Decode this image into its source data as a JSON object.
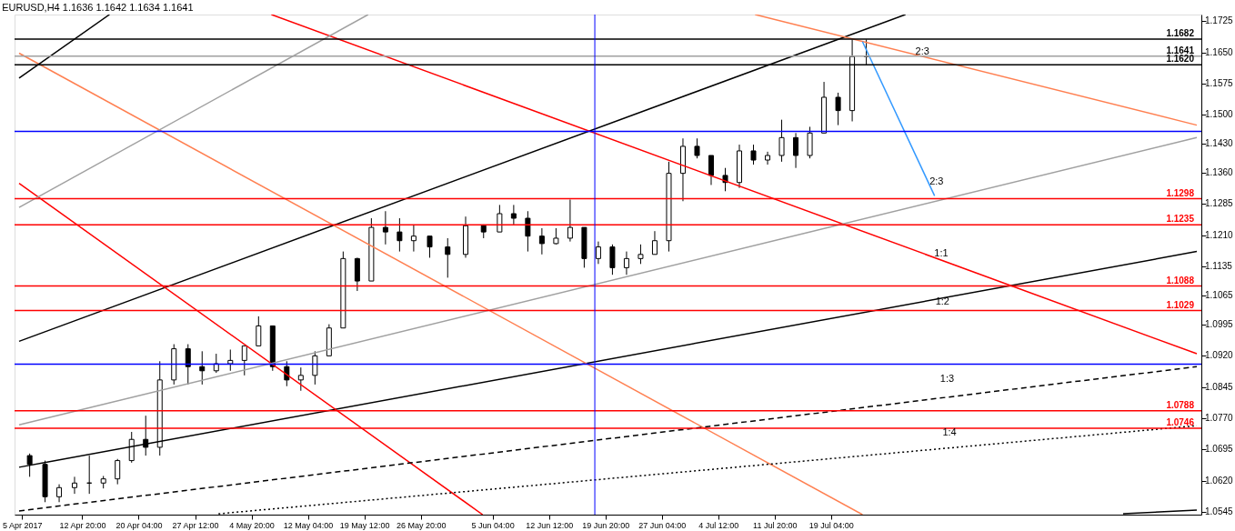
{
  "chart_data": {
    "type": "candlestick",
    "title": "EURUSD,H4 1.1636 1.1642 1.1634 1.1641",
    "x": [
      "2017-04-06T00:00",
      "2017-04-08T00:00",
      "2017-04-09T20:00",
      "2017-04-11T20:00",
      "2017-04-13T18:00",
      "2017-04-15T14:00",
      "2017-04-17T10:00",
      "2017-04-19T06:00",
      "2017-04-21T02:00",
      "2017-04-22T22:00",
      "2017-04-24T18:00",
      "2017-04-26T14:00",
      "2017-04-28T10:00",
      "2017-04-30T06:00",
      "2017-05-02T02:00",
      "2017-05-03T22:00",
      "2017-05-05T18:00",
      "2017-05-07T14:00",
      "2017-05-09T10:00",
      "2017-05-11T06:00",
      "2017-05-13T02:00",
      "2017-05-14T22:00",
      "2017-05-16T18:00",
      "2017-05-18T14:00",
      "2017-05-20T10:00",
      "2017-05-22T06:00",
      "2017-05-24T02:00",
      "2017-05-25T22:00",
      "2017-05-28T00:00",
      "2017-05-30T08:00",
      "2017-06-01T16:00",
      "2017-06-04T00:00",
      "2017-06-06T02:00",
      "2017-06-07T22:00",
      "2017-06-09T18:00",
      "2017-06-11T14:00",
      "2017-06-13T10:00",
      "2017-06-15T06:00",
      "2017-06-17T02:00",
      "2017-06-18T22:00",
      "2017-06-20T18:00",
      "2017-06-22T14:00",
      "2017-06-24T10:00",
      "2017-06-26T06:00",
      "2017-06-28T02:00",
      "2017-06-29T22:00",
      "2017-07-01T18:00",
      "2017-07-03T14:00",
      "2017-07-05T10:00",
      "2017-07-07T06:00",
      "2017-07-09T02:00",
      "2017-07-10T22:00",
      "2017-07-12T18:00",
      "2017-07-14T14:00",
      "2017-07-16T10:00",
      "2017-07-18T06:00",
      "2017-07-20T02:00",
      "2017-07-21T22:00",
      "2017-07-23T18:00"
    ],
    "ohlc": [
      [
        1.068,
        1.0685,
        1.0629,
        1.0659
      ],
      [
        1.0659,
        1.0668,
        1.0568,
        1.0581
      ],
      [
        1.0581,
        1.0611,
        1.0568,
        1.0603
      ],
      [
        1.0603,
        1.0629,
        1.0588,
        1.0614
      ],
      [
        1.0614,
        1.068,
        1.0588,
        1.0614
      ],
      [
        1.0614,
        1.0631,
        1.0601,
        1.0624
      ],
      [
        1.0624,
        1.0672,
        1.0611,
        1.0668
      ],
      [
        1.0668,
        1.0737,
        1.0663,
        1.0719
      ],
      [
        1.0719,
        1.0776,
        1.068,
        1.07
      ],
      [
        1.07,
        1.0907,
        1.068,
        1.0862
      ],
      [
        1.0862,
        1.0948,
        1.0851,
        1.0937
      ],
      [
        1.0937,
        1.0948,
        1.0851,
        1.0894
      ],
      [
        1.0894,
        1.0931,
        1.0851,
        1.0884
      ],
      [
        1.0884,
        1.0925,
        1.0879,
        1.0901
      ],
      [
        1.0901,
        1.0935,
        1.0884,
        1.0909
      ],
      [
        1.0909,
        1.0944,
        1.0873,
        1.0944
      ],
      [
        1.0944,
        1.1015,
        1.0944,
        1.0992
      ],
      [
        1.0992,
        1.0992,
        1.0884,
        1.0894
      ],
      [
        1.0894,
        1.0907,
        1.0847,
        1.0862
      ],
      [
        1.0862,
        1.0892,
        1.0836,
        1.0873
      ],
      [
        1.0873,
        1.0931,
        1.0851,
        1.092
      ],
      [
        1.092,
        1.0996,
        1.092,
        1.0987
      ],
      [
        1.0987,
        1.1171,
        1.0987,
        1.1154
      ],
      [
        1.1154,
        1.1156,
        1.1076,
        1.11
      ],
      [
        1.11,
        1.1251,
        1.11,
        1.1229
      ],
      [
        1.1229,
        1.1268,
        1.1188,
        1.1218
      ],
      [
        1.1218,
        1.1251,
        1.1171,
        1.1197
      ],
      [
        1.1197,
        1.1236,
        1.1171,
        1.1208
      ],
      [
        1.1208,
        1.1208,
        1.1156,
        1.1182
      ],
      [
        1.1182,
        1.1203,
        1.1108,
        1.1164
      ],
      [
        1.1164,
        1.1255,
        1.1156,
        1.1233
      ],
      [
        1.1233,
        1.1236,
        1.1203,
        1.1218
      ],
      [
        1.1218,
        1.1283,
        1.1218,
        1.1262
      ],
      [
        1.1262,
        1.1283,
        1.1236,
        1.1251
      ],
      [
        1.1251,
        1.1268,
        1.1171,
        1.1208
      ],
      [
        1.1208,
        1.1227,
        1.1164,
        1.119
      ],
      [
        1.119,
        1.1227,
        1.1188,
        1.1203
      ],
      [
        1.1203,
        1.1296,
        1.1195,
        1.1229
      ],
      [
        1.1229,
        1.1229,
        1.1132,
        1.1154
      ],
      [
        1.1154,
        1.1195,
        1.1141,
        1.1182
      ],
      [
        1.1182,
        1.1188,
        1.1115,
        1.1132
      ],
      [
        1.1132,
        1.1171,
        1.1115,
        1.1154
      ],
      [
        1.1154,
        1.1188,
        1.1141,
        1.1164
      ],
      [
        1.1164,
        1.122,
        1.1164,
        1.1197
      ],
      [
        1.1197,
        1.1387,
        1.1171,
        1.1359
      ],
      [
        1.1359,
        1.1443,
        1.1292,
        1.1424
      ],
      [
        1.1424,
        1.1443,
        1.1395,
        1.1402
      ],
      [
        1.1402,
        1.1402,
        1.1331,
        1.1354
      ],
      [
        1.1354,
        1.1372,
        1.1316,
        1.1337
      ],
      [
        1.1337,
        1.1428,
        1.1324,
        1.1413
      ],
      [
        1.1413,
        1.1428,
        1.138,
        1.1391
      ],
      [
        1.1391,
        1.1411,
        1.138,
        1.1402
      ],
      [
        1.1402,
        1.1488,
        1.1387,
        1.1445
      ],
      [
        1.1445,
        1.1456,
        1.1372,
        1.1402
      ],
      [
        1.1402,
        1.1471,
        1.1395,
        1.1456
      ],
      [
        1.1456,
        1.1579,
        1.1456,
        1.1542
      ],
      [
        1.1542,
        1.1553,
        1.1475,
        1.151
      ],
      [
        1.151,
        1.1681,
        1.1484,
        1.164
      ],
      [
        1.164,
        1.1681,
        1.162,
        1.1641
      ]
    ],
    "series": [
      {
        "type": "line",
        "color": "#000000",
        "x": [
          "2017-04-04T15:00",
          "2017-07-28T20:00"
        ],
        "values": [
          1.0955,
          1.1741
        ]
      },
      {
        "type": "line",
        "color": "#000000",
        "x": [
          "2017-04-04T15:00",
          "2017-09-04T17:00"
        ],
        "values": [
          1.0652,
          1.1171
        ]
      },
      {
        "type": "line",
        "color": "#ff0000",
        "x": [
          "2017-05-07T10:00",
          "2017-09-04T17:00"
        ],
        "values": [
          1.1741,
          1.0925
        ]
      },
      {
        "type": "line",
        "color": "#ff0000",
        "x": [
          "2017-04-04T15:00",
          "2017-06-03T21:00"
        ],
        "values": [
          1.1335,
          1.0538
        ]
      },
      {
        "type": "line",
        "color": "#ff7f50",
        "x": [
          "2017-04-04T15:00",
          "2017-07-23T06:00"
        ],
        "values": [
          1.1648,
          1.0538
        ]
      },
      {
        "type": "line",
        "color": "#ff7f50",
        "x": [
          "2017-07-09T07:00",
          "2017-09-04T17:00"
        ],
        "values": [
          1.1741,
          1.1475
        ]
      },
      {
        "type": "line",
        "color": "#a0a0a0",
        "x": [
          "2017-04-04T15:00",
          "2017-05-20T00:00"
        ],
        "values": [
          1.1277,
          1.1741
        ]
      },
      {
        "type": "line",
        "color": "#a0a0a0",
        "x": [
          "2017-04-04T15:00",
          "2017-09-04T17:00"
        ],
        "values": [
          1.0754,
          1.1445
        ]
      },
      {
        "type": "line",
        "color": "#000000",
        "x": [
          "2017-04-04T15:00",
          "2017-04-16T09:00"
        ],
        "values": [
          1.1588,
          1.1741
        ]
      },
      {
        "type": "line",
        "color": "#000000",
        "line_style": "dashed",
        "x": [
          "2017-04-04T15:00",
          "2017-09-04T17:00"
        ],
        "values": [
          1.0547,
          1.0894
        ]
      },
      {
        "type": "line",
        "color": "#000000",
        "line_style": "dotted",
        "x": [
          "2017-04-30T13:00",
          "2017-09-04T17:00"
        ],
        "values": [
          1.054,
          1.0752
        ]
      },
      {
        "type": "line",
        "color": "#000000",
        "x": [
          "2017-08-26T03:00",
          "2017-09-04T17:00"
        ],
        "values": [
          1.054,
          1.0549
        ]
      },
      {
        "type": "line",
        "color": "#3399ff",
        "x": [
          "2017-07-23T06:00",
          "2017-08-01T15:00"
        ],
        "values": [
          1.1676,
          1.1305
        ]
      }
    ],
    "ref_lines": [
      {
        "axis": "y",
        "value": 1.1682,
        "label": "1.1682",
        "color": "#000000"
      },
      {
        "axis": "y",
        "value": 1.1641,
        "label": "1.1641",
        "color": "#a0a0a0"
      },
      {
        "axis": "y",
        "value": 1.162,
        "label": "1.1620",
        "color": "#000000"
      },
      {
        "axis": "y",
        "value": 1.146,
        "color": "#0000ff"
      },
      {
        "axis": "y",
        "value": 1.1298,
        "label": "1.1298",
        "color": "#ff0000"
      },
      {
        "axis": "y",
        "value": 1.1235,
        "label": "1.1235",
        "color": "#ff0000"
      },
      {
        "axis": "y",
        "value": 1.1088,
        "label": "1.1088",
        "color": "#ff0000"
      },
      {
        "axis": "y",
        "value": 1.1029,
        "label": "1.1029",
        "color": "#ff0000"
      },
      {
        "axis": "y",
        "value": 1.09,
        "color": "#0000ff"
      },
      {
        "axis": "y",
        "value": 1.0788,
        "label": "1.0788",
        "color": "#ff0000"
      },
      {
        "axis": "y",
        "value": 1.0746,
        "label": "1.0746",
        "color": "#ff0000"
      },
      {
        "axis": "x",
        "value": "2017-06-18T11:00",
        "color": "#0000ff"
      }
    ],
    "annotations": [
      "2:3",
      "2:3",
      "1:1",
      "1:2",
      "1:3",
      "1:4"
    ],
    "xlim": [
      "2017-04-04T15:00",
      "2017-09-04T17:00"
    ],
    "xticks": [
      {
        "value": "2017-04-05T00:00",
        "label": "5 Apr 2017"
      },
      {
        "value": "2017-04-12T20:00",
        "label": "12 Apr 20:00"
      },
      {
        "value": "2017-04-20T04:00",
        "label": "20 Apr 04:00"
      },
      {
        "value": "2017-04-27T12:00",
        "label": "27 Apr 12:00"
      },
      {
        "value": "2017-05-04T20:00",
        "label": "4 May 20:00"
      },
      {
        "value": "2017-05-12T04:00",
        "label": "12 May 04:00"
      },
      {
        "value": "2017-05-19T12:00",
        "label": "19 May 12:00"
      },
      {
        "value": "2017-05-26T20:00",
        "label": "26 May 20:00"
      },
      {
        "value": "2017-06-05T04:00",
        "label": "5 Jun 04:00"
      },
      {
        "value": "2017-06-12T12:00",
        "label": "12 Jun 12:00"
      },
      {
        "value": "2017-06-19T20:00",
        "label": "19 Jun 20:00"
      },
      {
        "value": "2017-06-27T04:00",
        "label": "27 Jun 04:00"
      },
      {
        "value": "2017-07-04T12:00",
        "label": "4 Jul 12:00"
      },
      {
        "value": "2017-07-11T20:00",
        "label": "11 Jul 20:00"
      },
      {
        "value": "2017-07-19T04:00",
        "label": "19 Jul 04:00"
      }
    ],
    "ylim": [
      1.0538,
      1.1741
    ],
    "yticks": [
      {
        "value": 1.0545,
        "label": "1.0545"
      },
      {
        "value": 1.062,
        "label": "1.0620"
      },
      {
        "value": 1.0695,
        "label": "1.0695"
      },
      {
        "value": 1.077,
        "label": "1.0770"
      },
      {
        "value": 1.0845,
        "label": "1.0845"
      },
      {
        "value": 1.092,
        "label": "1.0920"
      },
      {
        "value": 1.0995,
        "label": "1.0995"
      },
      {
        "value": 1.1065,
        "label": "1.1065"
      },
      {
        "value": 1.1135,
        "label": "1.1135"
      },
      {
        "value": 1.121,
        "label": "1.1210"
      },
      {
        "value": 1.1285,
        "label": "1.1285"
      },
      {
        "value": 1.136,
        "label": "1.1360"
      },
      {
        "value": 1.143,
        "label": "1.1430"
      },
      {
        "value": 1.15,
        "label": "1.1500"
      },
      {
        "value": 1.1575,
        "label": "1.1575"
      },
      {
        "value": 1.165,
        "label": "1.1650"
      },
      {
        "value": 1.1725,
        "label": "1.1725"
      }
    ],
    "grid": false
  }
}
